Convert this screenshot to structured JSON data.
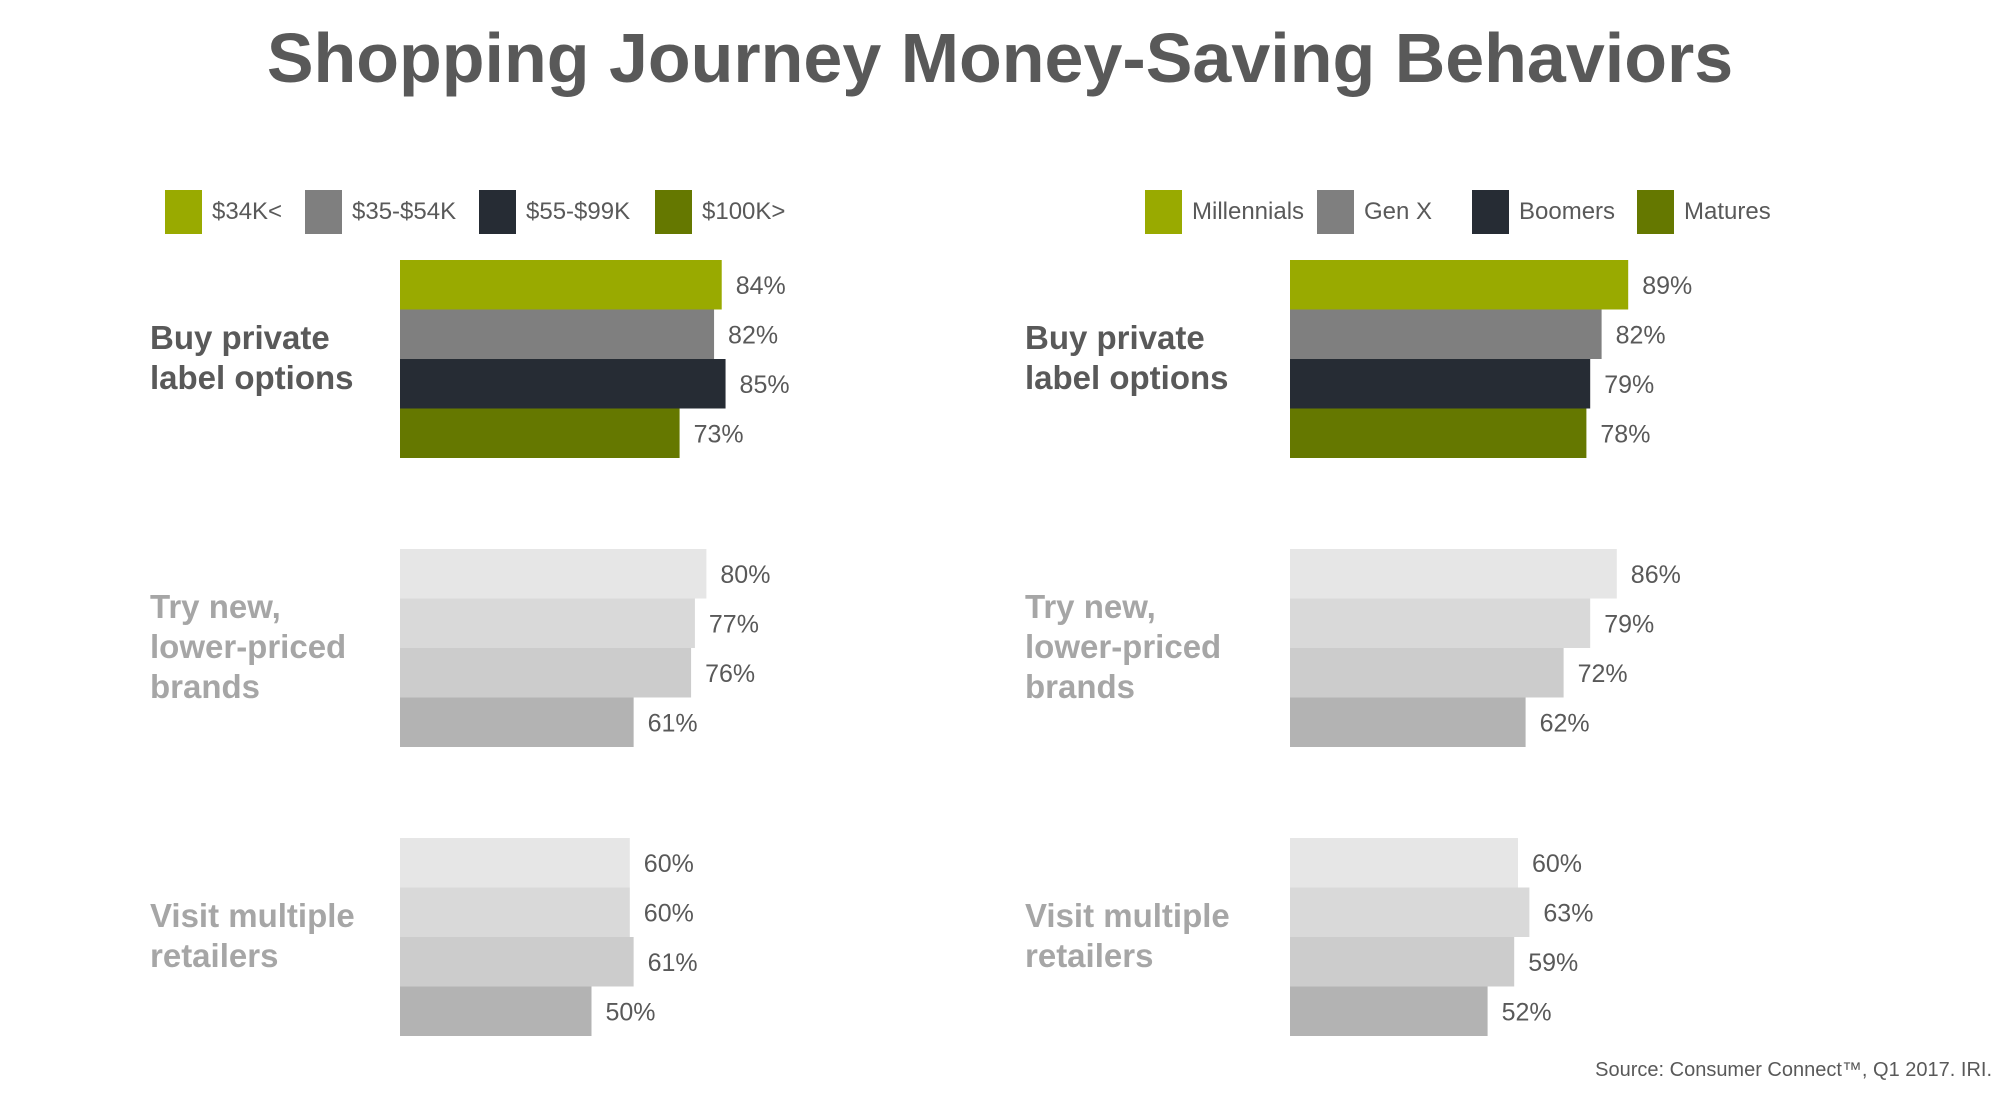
{
  "title": "Shopping Journey Money-Saving Behaviors",
  "source": "Source: Consumer Connect™, Q1 2017. IRI.",
  "colors": {
    "series": [
      "#99aa00",
      "#7f7f7f",
      "#262c34",
      "#657800"
    ],
    "muted": [
      "#e6e6e6",
      "#d9d9d9",
      "#cccccc",
      "#b3b3b3"
    ]
  },
  "chart_data": [
    {
      "type": "bar",
      "orientation": "horizontal",
      "categories": [
        "Buy private label options",
        "Try new, lower-priced brands",
        "Visit multiple retailers"
      ],
      "category_lines": [
        [
          "Buy private",
          "label options"
        ],
        [
          "Try new,",
          "lower-priced",
          "brands"
        ],
        [
          "Visit multiple",
          "retailers"
        ]
      ],
      "highlighted_category": 0,
      "legend_placement": "top",
      "series": [
        {
          "name": "$34K<",
          "values": [
            84,
            80,
            60
          ]
        },
        {
          "name": "$35-$54K",
          "values": [
            82,
            77,
            60
          ]
        },
        {
          "name": "$55-$99K",
          "values": [
            85,
            76,
            61
          ]
        },
        {
          "name": "$100K>",
          "values": [
            73,
            61,
            50
          ]
        }
      ],
      "value_suffix": "%",
      "xlim": [
        0,
        100
      ],
      "grid": false
    },
    {
      "type": "bar",
      "orientation": "horizontal",
      "categories": [
        "Buy private label options",
        "Try new, lower-priced brands",
        "Visit multiple retailers"
      ],
      "category_lines": [
        [
          "Buy private",
          "label options"
        ],
        [
          "Try new,",
          "lower-priced",
          "brands"
        ],
        [
          "Visit multiple",
          "retailers"
        ]
      ],
      "highlighted_category": 0,
      "legend_placement": "top",
      "series": [
        {
          "name": "Millennials",
          "values": [
            89,
            86,
            60
          ]
        },
        {
          "name": "Gen X",
          "values": [
            82,
            79,
            63
          ]
        },
        {
          "name": "Boomers",
          "values": [
            79,
            72,
            59
          ]
        },
        {
          "name": "Matures",
          "values": [
            78,
            62,
            52
          ]
        }
      ],
      "value_suffix": "%",
      "xlim": [
        0,
        100
      ],
      "grid": false
    }
  ]
}
